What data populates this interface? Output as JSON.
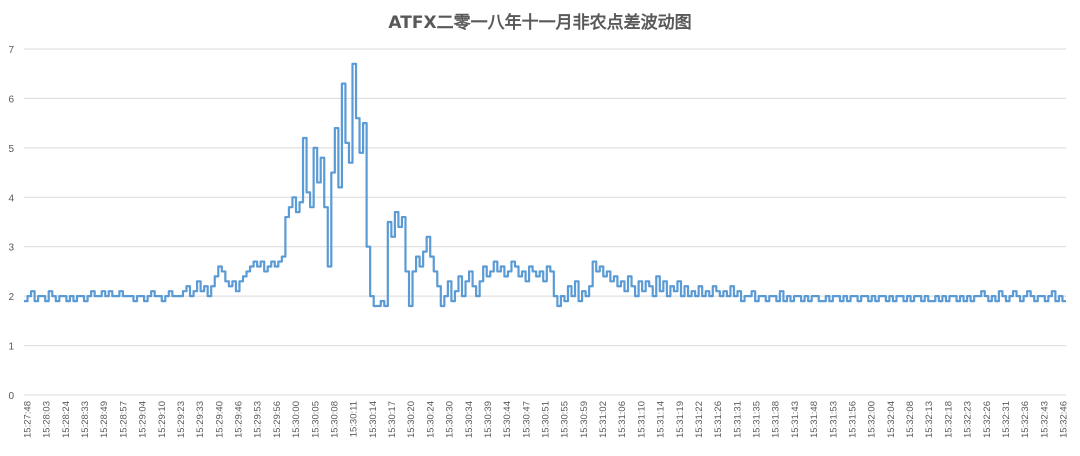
{
  "chart_data": {
    "type": "line",
    "title": "ATFX二零一八年十一月非农点差波动图",
    "xlabel": "",
    "ylabel": "",
    "ylim": [
      0,
      7
    ],
    "y_ticks": [
      "0",
      "1",
      "2",
      "3",
      "4",
      "5",
      "6",
      "7"
    ],
    "grid": true,
    "legend": "none",
    "line_color": "#5b9bd5",
    "grid_color": "#d9d9d9",
    "x_tick_labels": [
      "15:27:48",
      "15:28:03",
      "15:28:24",
      "15:28:33",
      "15:28:49",
      "15:28:57",
      "15:29:04",
      "15:29:10",
      "15:29:23",
      "15:29:33",
      "15:29:40",
      "15:29:46",
      "15:29:53",
      "15:29:56",
      "15:30:00",
      "15:30:05",
      "15:30:08",
      "15:30:11",
      "15:30:14",
      "15:30:17",
      "15:30:20",
      "15:30:24",
      "15:30:30",
      "15:30:34",
      "15:30:39",
      "15:30:44",
      "15:30:47",
      "15:30:51",
      "15:30:55",
      "15:30:59",
      "15:31:02",
      "15:31:06",
      "15:31:10",
      "15:31:14",
      "15:31:19",
      "15:31:22",
      "15:31:26",
      "15:31:31",
      "15:31:35",
      "15:31:38",
      "15:31:43",
      "15:31:48",
      "15:31:53",
      "15:31:56",
      "15:32:00",
      "15:32:04",
      "15:32:08",
      "15:32:13",
      "15:32:18",
      "15:32:23",
      "15:32:26",
      "15:32:31",
      "15:32:36",
      "15:32:43",
      "15:32:46"
    ],
    "series": [
      {
        "values": [
          1.9,
          2.0,
          2.1,
          1.9,
          2.0,
          2.0,
          1.9,
          2.1,
          2.0,
          1.9,
          2.0,
          2.0,
          1.9,
          2.0,
          1.9,
          2.0,
          2.0,
          1.9,
          2.0,
          2.1,
          2.0,
          2.0,
          2.1,
          2.0,
          2.1,
          2.0,
          2.0,
          2.1,
          2.0,
          2.0,
          2.0,
          1.9,
          2.0,
          2.0,
          1.9,
          2.0,
          2.1,
          2.0,
          2.0,
          1.9,
          2.0,
          2.1,
          2.0,
          2.0,
          2.0,
          2.1,
          2.2,
          2.0,
          2.1,
          2.3,
          2.1,
          2.2,
          2.0,
          2.2,
          2.4,
          2.6,
          2.5,
          2.3,
          2.2,
          2.3,
          2.1,
          2.3,
          2.4,
          2.5,
          2.6,
          2.7,
          2.6,
          2.7,
          2.5,
          2.6,
          2.7,
          2.6,
          2.7,
          2.8,
          3.6,
          3.8,
          4.0,
          3.7,
          3.9,
          5.2,
          4.1,
          3.8,
          5.0,
          4.3,
          4.8,
          3.8,
          2.6,
          4.5,
          5.4,
          4.2,
          6.3,
          5.1,
          4.7,
          6.7,
          5.6,
          4.9,
          5.5,
          3.0,
          2.0,
          1.8,
          1.8,
          1.9,
          1.8,
          3.5,
          3.2,
          3.7,
          3.4,
          3.6,
          2.5,
          1.8,
          2.5,
          2.8,
          2.6,
          2.9,
          3.2,
          2.8,
          2.5,
          2.2,
          1.8,
          2.0,
          2.3,
          1.9,
          2.1,
          2.4,
          2.0,
          2.3,
          2.5,
          2.2,
          2.0,
          2.3,
          2.6,
          2.4,
          2.5,
          2.7,
          2.5,
          2.6,
          2.4,
          2.5,
          2.7,
          2.6,
          2.4,
          2.5,
          2.3,
          2.6,
          2.5,
          2.4,
          2.5,
          2.3,
          2.6,
          2.5,
          2.0,
          1.8,
          2.0,
          1.9,
          2.2,
          2.0,
          2.3,
          1.9,
          2.1,
          2.0,
          2.2,
          2.7,
          2.5,
          2.6,
          2.4,
          2.5,
          2.3,
          2.4,
          2.2,
          2.3,
          2.1,
          2.4,
          2.2,
          2.0,
          2.3,
          2.1,
          2.3,
          2.2,
          2.0,
          2.4,
          2.1,
          2.3,
          2.0,
          2.2,
          2.1,
          2.3,
          2.0,
          2.2,
          2.0,
          2.1,
          2.0,
          2.2,
          2.0,
          2.1,
          2.0,
          2.2,
          2.1,
          2.0,
          2.1,
          2.0,
          2.2,
          2.0,
          2.1,
          1.9,
          2.0,
          2.0,
          2.1,
          1.9,
          2.0,
          2.0,
          1.9,
          2.0,
          2.0,
          1.9,
          2.1,
          1.9,
          2.0,
          1.9,
          2.0,
          2.0,
          1.9,
          2.0,
          1.9,
          2.0,
          2.0,
          1.9,
          1.9,
          2.0,
          1.9,
          2.0,
          2.0,
          1.9,
          2.0,
          1.9,
          2.0,
          2.0,
          1.9,
          2.0,
          2.0,
          1.9,
          2.0,
          1.9,
          2.0,
          2.0,
          1.9,
          2.0,
          1.9,
          2.0,
          2.0,
          1.9,
          2.0,
          1.9,
          2.0,
          2.0,
          1.9,
          2.0,
          1.9,
          1.9,
          2.0,
          1.9,
          2.0,
          1.9,
          2.0,
          2.0,
          1.9,
          2.0,
          1.9,
          2.0,
          1.9,
          2.0,
          2.0,
          2.1,
          2.0,
          1.9,
          2.0,
          1.9,
          2.1,
          2.0,
          1.9,
          2.0,
          2.1,
          2.0,
          1.9,
          2.0,
          2.1,
          2.0,
          1.9,
          2.0,
          2.0,
          1.9,
          2.0,
          2.1,
          1.9,
          2.0,
          1.9,
          1.9
        ]
      }
    ]
  }
}
